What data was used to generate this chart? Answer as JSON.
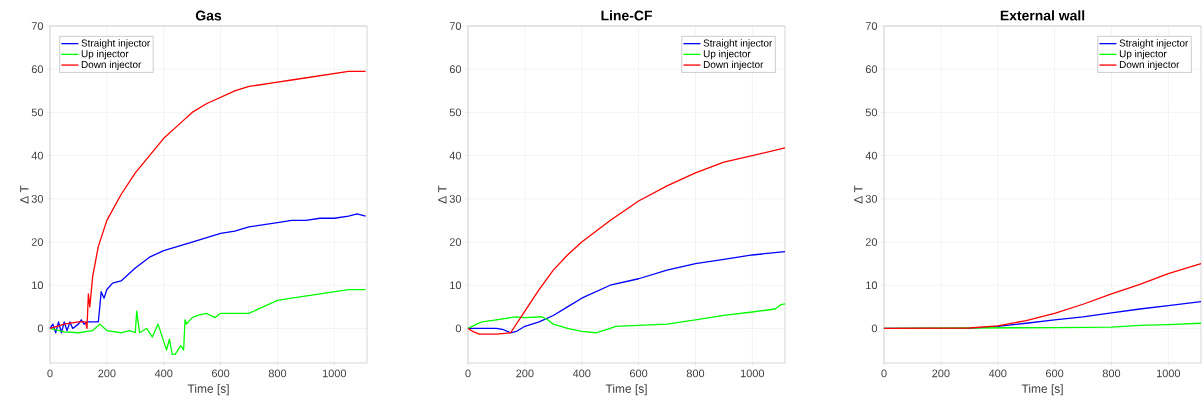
{
  "chart_data": [
    {
      "type": "line",
      "title": "Gas",
      "xlabel": "Time [s]",
      "ylabel": "Δ T",
      "xlim": [
        0,
        1115
      ],
      "ylim": [
        -8,
        70
      ],
      "xticks": [
        0,
        200,
        400,
        600,
        800,
        1000
      ],
      "yticks": [
        0,
        10,
        20,
        30,
        40,
        50,
        60,
        70
      ],
      "grid": true,
      "legend": "top left",
      "series": [
        {
          "name": "Straight injector",
          "color": "#0000ff",
          "x": [
            0,
            10,
            20,
            30,
            40,
            50,
            60,
            70,
            80,
            100,
            110,
            120,
            130,
            170,
            180,
            190,
            200,
            220,
            250,
            300,
            350,
            400,
            450,
            500,
            550,
            600,
            650,
            700,
            750,
            800,
            850,
            900,
            950,
            1000,
            1050,
            1080,
            1110
          ],
          "values": [
            0,
            1,
            -1,
            1.5,
            -1,
            1.5,
            -0.5,
            1.5,
            0,
            1,
            2,
            1,
            1.5,
            1.5,
            8.5,
            7,
            9,
            10.5,
            11,
            14,
            16.5,
            18,
            19,
            20,
            21,
            22,
            22.5,
            23.5,
            24,
            24.5,
            25,
            25,
            25.5,
            25.5,
            26,
            26.5,
            26
          ]
        },
        {
          "name": "Up injector",
          "color": "#00ff00",
          "x": [
            0,
            50,
            100,
            150,
            175,
            200,
            250,
            280,
            300,
            305,
            315,
            340,
            360,
            380,
            400,
            410,
            420,
            430,
            440,
            460,
            470,
            475,
            480,
            500,
            520,
            550,
            580,
            600,
            700,
            750,
            800,
            850,
            900,
            950,
            1000,
            1050,
            1110
          ],
          "values": [
            0,
            -0.8,
            -1,
            -0.5,
            1,
            -0.5,
            -1,
            -0.5,
            -1,
            4,
            -1,
            0,
            -2,
            1,
            -3,
            -5,
            -2.5,
            -6,
            -6,
            -4,
            -5,
            2,
            1,
            2.5,
            3,
            3.5,
            2.5,
            3.5,
            3.5,
            5,
            6.5,
            7,
            7.5,
            8,
            8.5,
            9,
            9
          ]
        },
        {
          "name": "Down injector",
          "color": "#ff0000",
          "x": [
            0,
            50,
            100,
            125,
            130,
            135,
            140,
            150,
            170,
            200,
            250,
            300,
            350,
            400,
            450,
            500,
            550,
            600,
            650,
            700,
            750,
            800,
            850,
            900,
            950,
            1000,
            1050,
            1110
          ],
          "values": [
            0,
            1,
            1.5,
            1.5,
            0,
            8,
            5,
            12,
            19,
            25,
            31,
            36,
            40,
            44,
            47,
            50,
            52,
            53.5,
            55,
            56,
            56.5,
            57,
            57.5,
            58,
            58.5,
            59,
            59.5,
            59.5
          ]
        }
      ]
    },
    {
      "type": "line",
      "title": "Line-CF",
      "xlabel": "Time [s]",
      "ylabel": "Δ T",
      "xlim": [
        0,
        1115
      ],
      "ylim": [
        -8,
        70
      ],
      "xticks": [
        0,
        200,
        400,
        600,
        800,
        1000
      ],
      "yticks": [
        0,
        10,
        20,
        30,
        40,
        50,
        60,
        70
      ],
      "grid": true,
      "legend": "top right",
      "series": [
        {
          "name": "Straight injector",
          "color": "#0000ff",
          "x": [
            0,
            50,
            100,
            125,
            150,
            170,
            200,
            250,
            300,
            350,
            400,
            450,
            500,
            600,
            700,
            800,
            900,
            1000,
            1115
          ],
          "values": [
            0,
            0,
            0,
            -0.3,
            -1,
            -0.7,
            0.5,
            1.5,
            3,
            5,
            7,
            8.5,
            10,
            11.5,
            13.5,
            15,
            16,
            17,
            17.8
          ]
        },
        {
          "name": "Up injector",
          "color": "#00ff00",
          "x": [
            0,
            30,
            50,
            100,
            150,
            170,
            200,
            260,
            280,
            300,
            350,
            400,
            450,
            500,
            520,
            600,
            700,
            800,
            900,
            1000,
            1080,
            1100,
            1115
          ],
          "values": [
            0,
            1,
            1.5,
            2,
            2.5,
            2.7,
            2.5,
            2.7,
            2,
            1,
            0,
            -0.7,
            -1,
            0,
            0.5,
            0.7,
            1,
            2,
            3,
            3.8,
            4.5,
            5.5,
            5.7
          ]
        },
        {
          "name": "Down injector",
          "color": "#ff0000",
          "x": [
            0,
            20,
            40,
            100,
            150,
            200,
            250,
            300,
            350,
            400,
            500,
            600,
            700,
            800,
            900,
            1000,
            1115
          ],
          "values": [
            0,
            -0.8,
            -1.3,
            -1.3,
            -1,
            4,
            9,
            13.5,
            17,
            20,
            25,
            29.5,
            33,
            36,
            38.5,
            40,
            41.8
          ]
        }
      ]
    },
    {
      "type": "line",
      "title": "External wall",
      "xlabel": "Time [s]",
      "ylabel": "Δ T",
      "xlim": [
        0,
        1115
      ],
      "ylim": [
        -8,
        70
      ],
      "xticks": [
        0,
        200,
        400,
        600,
        800,
        1000
      ],
      "yticks": [
        0,
        10,
        20,
        30,
        40,
        50,
        60,
        70
      ],
      "grid": true,
      "legend": "top right",
      "series": [
        {
          "name": "Straight injector",
          "color": "#0000ff",
          "x": [
            0,
            300,
            400,
            500,
            600,
            700,
            800,
            900,
            1000,
            1115
          ],
          "values": [
            0,
            0,
            0.5,
            1.2,
            2,
            2.7,
            3.6,
            4.5,
            5.3,
            6.2
          ]
        },
        {
          "name": "Up injector",
          "color": "#00ff00",
          "x": [
            0,
            600,
            800,
            900,
            1000,
            1115
          ],
          "values": [
            0,
            0.2,
            0.3,
            0.7,
            0.9,
            1.2
          ]
        },
        {
          "name": "Down injector",
          "color": "#ff0000",
          "x": [
            0,
            300,
            400,
            500,
            600,
            700,
            800,
            900,
            1000,
            1115
          ],
          "values": [
            0,
            0.1,
            0.6,
            1.8,
            3.5,
            5.6,
            8,
            10.2,
            12.7,
            15
          ]
        }
      ]
    }
  ]
}
